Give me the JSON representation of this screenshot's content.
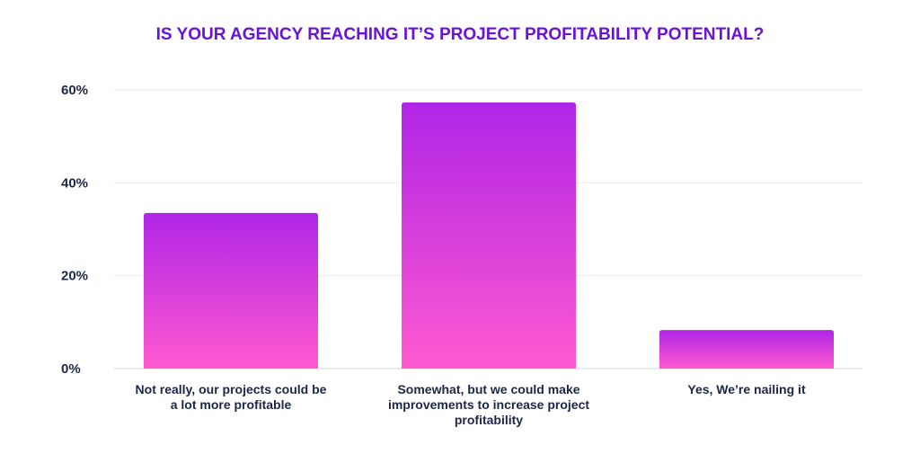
{
  "chart_data": {
    "type": "bar",
    "title": "IS YOUR AGENCY REACHING IT’S PROJECT PROFITABILITY POTENTIAL?",
    "categories": [
      "Not really, our projects could be a lot more profitable",
      "Somewhat, but we could make improvements to increase project profitability",
      "Yes, We’re nailing it"
    ],
    "values": [
      33.5,
      57.3,
      8.3
    ],
    "xlabel": "",
    "ylabel": "",
    "ylim": [
      0,
      60
    ],
    "yticks": [
      0,
      20,
      40,
      60
    ],
    "ytick_labels": [
      "0%",
      "20%",
      "40%",
      "60%"
    ],
    "grid": true,
    "bar_gradient": {
      "top": "#b025e6",
      "bottom": "#ff5ad0"
    },
    "title_color": "#6a12d8"
  }
}
